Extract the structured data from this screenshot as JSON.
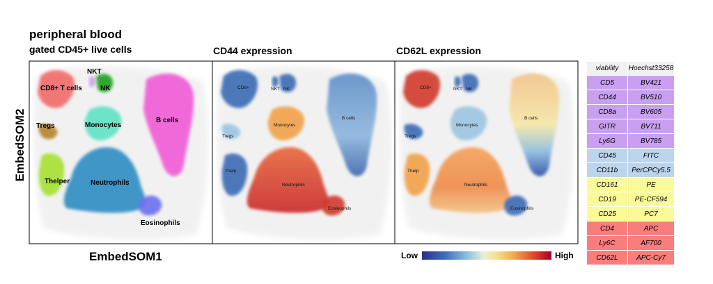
{
  "header": {
    "title": "peripheral blood",
    "subtitle": "gated CD45+ live cells"
  },
  "panels": [
    {
      "title": ""
    },
    {
      "title": "CD44 expression"
    },
    {
      "title": "CD62L expression"
    }
  ],
  "axes": {
    "xlabel": "EmbedSOM1",
    "ylabel": "EmbedSOM2"
  },
  "legend": {
    "low": "Low",
    "high": "High"
  },
  "chart_data": {
    "type": "scatter",
    "description_of_axes": "EmbedSOM embedding, no tick values shown",
    "panels": [
      {
        "name": "cluster",
        "clusters": [
          {
            "label": "NKT",
            "color": "#c9a3e6"
          },
          {
            "label": "CD8+ T cells",
            "color": "#f26b6b"
          },
          {
            "label": "NK",
            "color": "#1fa11f"
          },
          {
            "label": "B cells",
            "color": "#f25ad6"
          },
          {
            "label": "Monocytes",
            "color": "#5fe3c3"
          },
          {
            "label": "Tregs",
            "color": "#b5842b"
          },
          {
            "label": "Thelper",
            "color": "#a6e033"
          },
          {
            "label": "Neutrophils",
            "color": "#2f8dc4"
          },
          {
            "label": "Eosinophils",
            "color": "#6e6ef2"
          }
        ]
      },
      {
        "name": "CD44 expression",
        "cluster_labels": [
          "CD8+",
          "NKT",
          "NK",
          "Monocytes",
          "Tregs",
          "B cells",
          "Thelp",
          "Neutrophils",
          "Eosinophils"
        ],
        "levels": {
          "CD8+": "low",
          "NKT": "low",
          "NK": "low",
          "Monocytes": "mid-high",
          "Tregs": "mixed",
          "B cells": "low",
          "Thelp": "low",
          "Neutrophils": "high",
          "Eosinophils": "high"
        }
      },
      {
        "name": "CD62L expression",
        "cluster_labels": [
          "CD8+",
          "NKT",
          "NK",
          "Monocytes",
          "Tregs",
          "B cells",
          "Thelp",
          "Neutrophils",
          "Eosinophils"
        ],
        "levels": {
          "CD8+": "high",
          "NKT": "low",
          "NK": "low",
          "Monocytes": "mixed",
          "Tregs": "low",
          "B cells": "mid-high",
          "Thelp": "mid-high",
          "Neutrophils": "mid-high",
          "Eosinophils": "low"
        }
      }
    ]
  },
  "marker_table": {
    "header": [
      "viability",
      "Hoechst33258"
    ],
    "groups": [
      {
        "color": "#c9a0f0",
        "rows": [
          [
            "CD5",
            "BV421"
          ],
          [
            "CD44",
            "BV510"
          ],
          [
            "CD8a",
            "BV605"
          ],
          [
            "GITR",
            "BV711"
          ],
          [
            "Ly6G",
            "BV785"
          ]
        ]
      },
      {
        "color": "#bcd4ec",
        "rows": [
          [
            "CD45",
            "FITC"
          ],
          [
            "CD11b",
            "PerCPCy5.5"
          ]
        ]
      },
      {
        "color": "#fafa96",
        "rows": [
          [
            "CD161",
            "PE"
          ],
          [
            "CD19",
            "PE-CF594"
          ],
          [
            "CD25",
            "PC7"
          ]
        ]
      },
      {
        "color": "#f87d7d",
        "rows": [
          [
            "CD4",
            "APC"
          ],
          [
            "Ly6C",
            "AF700"
          ],
          [
            "CD62L",
            "APC-Cy7"
          ]
        ]
      }
    ]
  }
}
